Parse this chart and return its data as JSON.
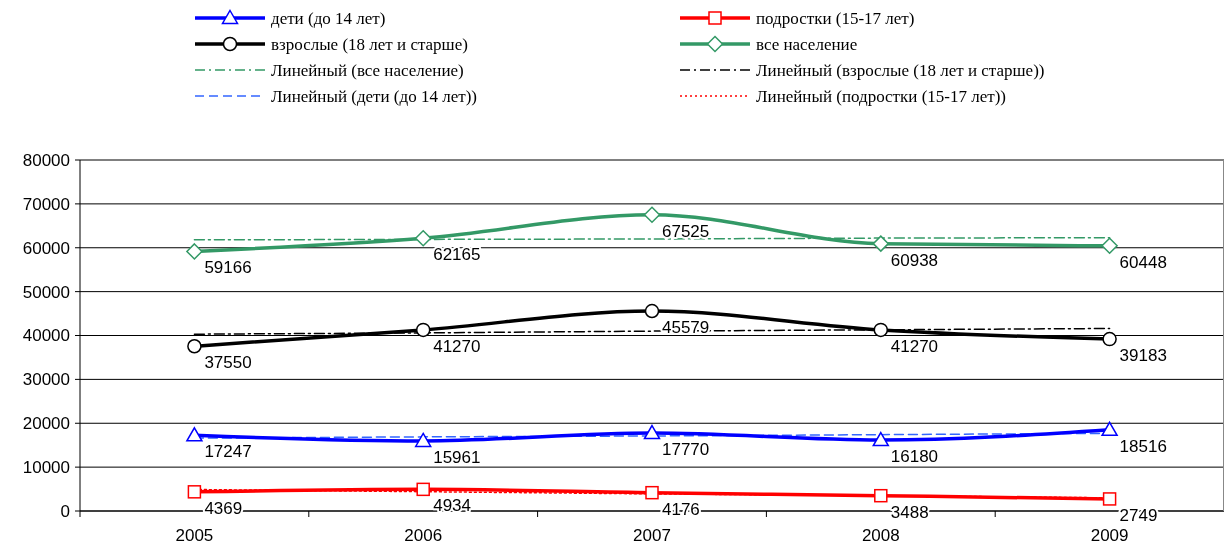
{
  "chart_data": {
    "type": "line",
    "categories": [
      "2005",
      "2006",
      "2007",
      "2008",
      "2009"
    ],
    "series": [
      {
        "name": "дети (до 14 лет)",
        "color": "#0000ff",
        "marker": "triangle",
        "line_style": "solid",
        "values": [
          17247,
          15961,
          17770,
          16180,
          18516
        ],
        "value_labels": [
          "17247",
          "15961",
          "17770",
          "16180",
          "18516"
        ]
      },
      {
        "name": "подростки (15-17 лет)",
        "color": "#ff0000",
        "marker": "square",
        "line_style": "solid",
        "values": [
          4369,
          4934,
          4176,
          3488,
          2749
        ],
        "value_labels": [
          "4369",
          "4934",
          "4176",
          "3488",
          "2749"
        ]
      },
      {
        "name": "взрослые (18 лет и старше)",
        "color": "#000000",
        "marker": "circle",
        "line_style": "solid",
        "values": [
          37550,
          41270,
          45579,
          41270,
          39183
        ],
        "value_labels": [
          "37550",
          "41270",
          "45579",
          "41270",
          "39183"
        ]
      },
      {
        "name": "все население",
        "color": "#339966",
        "marker": "diamond",
        "line_style": "solid",
        "values": [
          59166,
          62165,
          67525,
          60938,
          60448
        ],
        "value_labels": [
          "59166",
          "62165",
          "67525",
          "60938",
          "60448"
        ]
      },
      {
        "name": "Линейный (все население)",
        "color": "#339966",
        "marker": "none",
        "line_style": "dashdot",
        "values": [
          61800,
          61900,
          62000,
          62200,
          62300
        ]
      },
      {
        "name": "Линейный (взрослые (18 лет и старше))",
        "color": "#000000",
        "marker": "none",
        "line_style": "dashdot",
        "values": [
          40300,
          40600,
          41000,
          41300,
          41600
        ]
      },
      {
        "name": "Линейный (дети (до 14 лет))",
        "color": "#3366ff",
        "marker": "none",
        "line_style": "dashed",
        "values": [
          16600,
          16900,
          17100,
          17400,
          17700
        ]
      },
      {
        "name": "Линейный (подростки (15-17 лет))",
        "color": "#ff0000",
        "marker": "none",
        "line_style": "dotted",
        "values": [
          4900,
          4400,
          3900,
          3500,
          3000
        ]
      }
    ],
    "ylim": [
      0,
      80000
    ],
    "yticks": [
      0,
      10000,
      20000,
      30000,
      40000,
      50000,
      60000,
      70000,
      80000
    ],
    "grid": "y",
    "legend": "top"
  }
}
